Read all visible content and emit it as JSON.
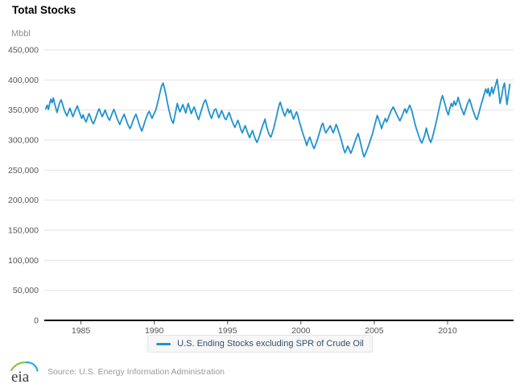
{
  "header": {
    "title": "Total Stocks",
    "unit_label": "Mbbl"
  },
  "legend": {
    "series_label": "U.S. Ending Stocks excluding SPR of Crude Oil"
  },
  "footer": {
    "logo_text": "eia",
    "source": "Source: U.S. Energy Information Administration"
  },
  "chart_data": {
    "type": "line",
    "title": "Total Stocks",
    "ylabel": "Mbbl",
    "series_name": "U.S. Ending Stocks excluding SPR of Crude Oil",
    "legend_position": "bottom",
    "grid": true,
    "colors": {
      "line": "#1f92d0",
      "grid": "#e2e2e2",
      "axis": "#000000",
      "tick_text": "#555555"
    },
    "x_domain": [
      1982.5,
      2014.5
    ],
    "ylim": [
      0,
      450
    ],
    "point_value_unit": "thousand Mbbl (axis labels shown in Mbbl)",
    "xticks": [
      1985,
      1990,
      1995,
      2000,
      2005,
      2010
    ],
    "yticks": [
      {
        "value": 0,
        "label": "0"
      },
      {
        "value": 50,
        "label": "50,000"
      },
      {
        "value": 100,
        "label": "100,000"
      },
      {
        "value": 150,
        "label": "150,000"
      },
      {
        "value": 200,
        "label": "200,000"
      },
      {
        "value": 250,
        "label": "250,000"
      },
      {
        "value": 300,
        "label": "300,000"
      },
      {
        "value": 350,
        "label": "350,000"
      },
      {
        "value": 400,
        "label": "400,000"
      },
      {
        "value": 450,
        "label": "450,000"
      }
    ],
    "points": [
      [
        1982.6,
        352
      ],
      [
        1982.7,
        358
      ],
      [
        1982.78,
        351
      ],
      [
        1982.87,
        361
      ],
      [
        1982.95,
        368
      ],
      [
        1983.03,
        362
      ],
      [
        1983.12,
        370
      ],
      [
        1983.2,
        361
      ],
      [
        1983.3,
        352
      ],
      [
        1983.37,
        346
      ],
      [
        1983.45,
        354
      ],
      [
        1983.55,
        362
      ],
      [
        1983.65,
        367
      ],
      [
        1983.75,
        359
      ],
      [
        1983.85,
        351
      ],
      [
        1983.95,
        345
      ],
      [
        1984.05,
        340
      ],
      [
        1984.15,
        347
      ],
      [
        1984.25,
        353
      ],
      [
        1984.35,
        346
      ],
      [
        1984.45,
        339
      ],
      [
        1984.55,
        345
      ],
      [
        1984.65,
        351
      ],
      [
        1984.75,
        357
      ],
      [
        1984.85,
        350
      ],
      [
        1984.95,
        343
      ],
      [
        1985.05,
        336
      ],
      [
        1985.15,
        342
      ],
      [
        1985.25,
        335
      ],
      [
        1985.35,
        330
      ],
      [
        1985.45,
        337
      ],
      [
        1985.55,
        344
      ],
      [
        1985.65,
        338
      ],
      [
        1985.75,
        331
      ],
      [
        1985.85,
        327
      ],
      [
        1985.95,
        333
      ],
      [
        1986.05,
        340
      ],
      [
        1986.15,
        347
      ],
      [
        1986.25,
        352
      ],
      [
        1986.35,
        345
      ],
      [
        1986.45,
        339
      ],
      [
        1986.55,
        344
      ],
      [
        1986.65,
        350
      ],
      [
        1986.75,
        343
      ],
      [
        1986.85,
        337
      ],
      [
        1986.95,
        333
      ],
      [
        1987.05,
        339
      ],
      [
        1987.15,
        346
      ],
      [
        1987.25,
        351
      ],
      [
        1987.35,
        344
      ],
      [
        1987.45,
        337
      ],
      [
        1987.55,
        331
      ],
      [
        1987.65,
        326
      ],
      [
        1987.75,
        332
      ],
      [
        1987.85,
        338
      ],
      [
        1987.95,
        343
      ],
      [
        1988.05,
        336
      ],
      [
        1988.15,
        329
      ],
      [
        1988.25,
        323
      ],
      [
        1988.35,
        319
      ],
      [
        1988.45,
        325
      ],
      [
        1988.55,
        332
      ],
      [
        1988.65,
        338
      ],
      [
        1988.75,
        343
      ],
      [
        1988.85,
        336
      ],
      [
        1988.95,
        328
      ],
      [
        1989.05,
        321
      ],
      [
        1989.15,
        315
      ],
      [
        1989.25,
        322
      ],
      [
        1989.35,
        330
      ],
      [
        1989.45,
        337
      ],
      [
        1989.55,
        343
      ],
      [
        1989.65,
        348
      ],
      [
        1989.75,
        342
      ],
      [
        1989.85,
        336
      ],
      [
        1989.95,
        342
      ],
      [
        1990.1,
        350
      ],
      [
        1990.2,
        359
      ],
      [
        1990.3,
        369
      ],
      [
        1990.4,
        380
      ],
      [
        1990.5,
        390
      ],
      [
        1990.6,
        395
      ],
      [
        1990.7,
        386
      ],
      [
        1990.8,
        375
      ],
      [
        1990.9,
        362
      ],
      [
        1991.0,
        350
      ],
      [
        1991.1,
        340
      ],
      [
        1991.2,
        332
      ],
      [
        1991.3,
        328
      ],
      [
        1991.4,
        340
      ],
      [
        1991.5,
        352
      ],
      [
        1991.57,
        361
      ],
      [
        1991.65,
        354
      ],
      [
        1991.75,
        347
      ],
      [
        1991.85,
        353
      ],
      [
        1991.95,
        359
      ],
      [
        1992.05,
        352
      ],
      [
        1992.15,
        345
      ],
      [
        1992.25,
        355
      ],
      [
        1992.32,
        361
      ],
      [
        1992.42,
        352
      ],
      [
        1992.52,
        344
      ],
      [
        1992.62,
        350
      ],
      [
        1992.72,
        355
      ],
      [
        1992.82,
        348
      ],
      [
        1992.92,
        340
      ],
      [
        1993.02,
        334
      ],
      [
        1993.12,
        342
      ],
      [
        1993.22,
        350
      ],
      [
        1993.32,
        358
      ],
      [
        1993.42,
        364
      ],
      [
        1993.5,
        367
      ],
      [
        1993.6,
        359
      ],
      [
        1993.7,
        350
      ],
      [
        1993.8,
        342
      ],
      [
        1993.9,
        336
      ],
      [
        1994.0,
        343
      ],
      [
        1994.1,
        350
      ],
      [
        1994.2,
        352
      ],
      [
        1994.3,
        344
      ],
      [
        1994.4,
        337
      ],
      [
        1994.5,
        343
      ],
      [
        1994.6,
        349
      ],
      [
        1994.7,
        343
      ],
      [
        1994.8,
        336
      ],
      [
        1994.9,
        334
      ],
      [
        1995.0,
        340
      ],
      [
        1995.1,
        346
      ],
      [
        1995.2,
        339
      ],
      [
        1995.3,
        332
      ],
      [
        1995.4,
        326
      ],
      [
        1995.5,
        321
      ],
      [
        1995.6,
        327
      ],
      [
        1995.7,
        333
      ],
      [
        1995.8,
        326
      ],
      [
        1995.9,
        318
      ],
      [
        1996.0,
        312
      ],
      [
        1996.1,
        318
      ],
      [
        1996.2,
        324
      ],
      [
        1996.3,
        317
      ],
      [
        1996.4,
        310
      ],
      [
        1996.5,
        304
      ],
      [
        1996.6,
        310
      ],
      [
        1996.7,
        316
      ],
      [
        1996.8,
        308
      ],
      [
        1996.9,
        301
      ],
      [
        1997.0,
        296
      ],
      [
        1997.1,
        302
      ],
      [
        1997.2,
        309
      ],
      [
        1997.3,
        317
      ],
      [
        1997.4,
        325
      ],
      [
        1997.5,
        331
      ],
      [
        1997.55,
        335
      ],
      [
        1997.65,
        323
      ],
      [
        1997.75,
        315
      ],
      [
        1997.85,
        308
      ],
      [
        1997.95,
        305
      ],
      [
        1998.05,
        312
      ],
      [
        1998.15,
        320
      ],
      [
        1998.25,
        330
      ],
      [
        1998.35,
        341
      ],
      [
        1998.45,
        352
      ],
      [
        1998.55,
        361
      ],
      [
        1998.6,
        363
      ],
      [
        1998.7,
        354
      ],
      [
        1998.8,
        346
      ],
      [
        1998.9,
        340
      ],
      [
        1999.0,
        346
      ],
      [
        1999.1,
        352
      ],
      [
        1999.2,
        345
      ],
      [
        1999.3,
        350
      ],
      [
        1999.4,
        342
      ],
      [
        1999.5,
        335
      ],
      [
        1999.6,
        341
      ],
      [
        1999.7,
        347
      ],
      [
        1999.8,
        340
      ],
      [
        1999.9,
        330
      ],
      [
        2000.0,
        322
      ],
      [
        2000.1,
        314
      ],
      [
        2000.2,
        306
      ],
      [
        2000.3,
        299
      ],
      [
        2000.4,
        291
      ],
      [
        2000.5,
        299
      ],
      [
        2000.6,
        305
      ],
      [
        2000.7,
        298
      ],
      [
        2000.8,
        291
      ],
      [
        2000.9,
        286
      ],
      [
        2001.0,
        292
      ],
      [
        2001.15,
        303
      ],
      [
        2001.3,
        315
      ],
      [
        2001.42,
        325
      ],
      [
        2001.5,
        328
      ],
      [
        2001.6,
        318
      ],
      [
        2001.7,
        312
      ],
      [
        2001.85,
        318
      ],
      [
        2002.0,
        324
      ],
      [
        2002.1,
        318
      ],
      [
        2002.2,
        312
      ],
      [
        2002.3,
        318
      ],
      [
        2002.4,
        326
      ],
      [
        2002.5,
        320
      ],
      [
        2002.6,
        312
      ],
      [
        2002.7,
        305
      ],
      [
        2002.8,
        296
      ],
      [
        2002.9,
        286
      ],
      [
        2003.0,
        279
      ],
      [
        2003.1,
        284
      ],
      [
        2003.2,
        290
      ],
      [
        2003.3,
        284
      ],
      [
        2003.4,
        278
      ],
      [
        2003.5,
        284
      ],
      [
        2003.6,
        291
      ],
      [
        2003.7,
        298
      ],
      [
        2003.8,
        305
      ],
      [
        2003.9,
        311
      ],
      [
        2004.0,
        302
      ],
      [
        2004.1,
        292
      ],
      [
        2004.2,
        281
      ],
      [
        2004.3,
        272
      ],
      [
        2004.45,
        280
      ],
      [
        2004.6,
        290
      ],
      [
        2004.75,
        301
      ],
      [
        2004.9,
        312
      ],
      [
        2005.0,
        322
      ],
      [
        2005.1,
        331
      ],
      [
        2005.2,
        341
      ],
      [
        2005.3,
        335
      ],
      [
        2005.42,
        326
      ],
      [
        2005.5,
        319
      ],
      [
        2005.62,
        328
      ],
      [
        2005.75,
        336
      ],
      [
        2005.85,
        330
      ],
      [
        2005.95,
        336
      ],
      [
        2006.05,
        343
      ],
      [
        2006.15,
        349
      ],
      [
        2006.3,
        355
      ],
      [
        2006.45,
        347
      ],
      [
        2006.6,
        339
      ],
      [
        2006.75,
        332
      ],
      [
        2006.9,
        340
      ],
      [
        2007.0,
        347
      ],
      [
        2007.1,
        352
      ],
      [
        2007.2,
        345
      ],
      [
        2007.3,
        351
      ],
      [
        2007.42,
        358
      ],
      [
        2007.55,
        350
      ],
      [
        2007.65,
        340
      ],
      [
        2007.75,
        330
      ],
      [
        2007.85,
        321
      ],
      [
        2007.95,
        313
      ],
      [
        2008.05,
        306
      ],
      [
        2008.15,
        299
      ],
      [
        2008.25,
        295
      ],
      [
        2008.35,
        302
      ],
      [
        2008.45,
        309
      ],
      [
        2008.55,
        320
      ],
      [
        2008.65,
        310
      ],
      [
        2008.75,
        302
      ],
      [
        2008.85,
        296
      ],
      [
        2008.95,
        303
      ],
      [
        2009.05,
        312
      ],
      [
        2009.15,
        322
      ],
      [
        2009.25,
        333
      ],
      [
        2009.35,
        344
      ],
      [
        2009.45,
        355
      ],
      [
        2009.55,
        366
      ],
      [
        2009.65,
        374
      ],
      [
        2009.75,
        366
      ],
      [
        2009.85,
        357
      ],
      [
        2009.95,
        348
      ],
      [
        2010.05,
        342
      ],
      [
        2010.15,
        352
      ],
      [
        2010.25,
        361
      ],
      [
        2010.35,
        356
      ],
      [
        2010.45,
        365
      ],
      [
        2010.55,
        358
      ],
      [
        2010.65,
        364
      ],
      [
        2010.72,
        371
      ],
      [
        2010.82,
        362
      ],
      [
        2010.92,
        354
      ],
      [
        2011.02,
        348
      ],
      [
        2011.12,
        342
      ],
      [
        2011.22,
        350
      ],
      [
        2011.32,
        358
      ],
      [
        2011.42,
        364
      ],
      [
        2011.5,
        368
      ],
      [
        2011.6,
        360
      ],
      [
        2011.7,
        352
      ],
      [
        2011.8,
        345
      ],
      [
        2011.9,
        338
      ],
      [
        2012.0,
        334
      ],
      [
        2012.1,
        342
      ],
      [
        2012.2,
        351
      ],
      [
        2012.3,
        360
      ],
      [
        2012.4,
        368
      ],
      [
        2012.5,
        377
      ],
      [
        2012.6,
        385
      ],
      [
        2012.7,
        378
      ],
      [
        2012.77,
        386
      ],
      [
        2012.87,
        373
      ],
      [
        2012.95,
        381
      ],
      [
        2013.02,
        388
      ],
      [
        2013.1,
        377
      ],
      [
        2013.2,
        385
      ],
      [
        2013.3,
        394
      ],
      [
        2013.38,
        401
      ],
      [
        2013.48,
        383
      ],
      [
        2013.58,
        361
      ],
      [
        2013.68,
        372
      ],
      [
        2013.78,
        387
      ],
      [
        2013.88,
        395
      ],
      [
        2013.96,
        378
      ],
      [
        2014.05,
        359
      ],
      [
        2014.15,
        376
      ],
      [
        2014.25,
        393
      ]
    ]
  }
}
